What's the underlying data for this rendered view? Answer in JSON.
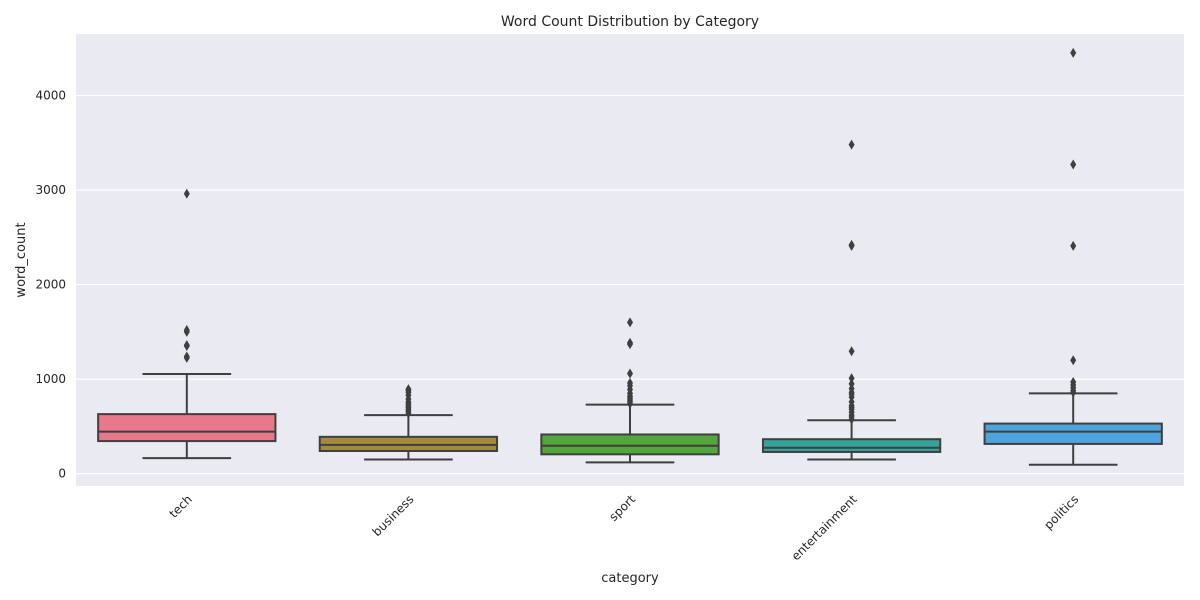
{
  "chart_data": {
    "type": "box",
    "title": "Word Count Distribution by Category",
    "xlabel": "category",
    "ylabel": "word_count",
    "ylim": [
      -130,
      4650
    ],
    "yticks": [
      0,
      1000,
      2000,
      3000,
      4000
    ],
    "grid": true,
    "categories": [
      "tech",
      "business",
      "sport",
      "entertainment",
      "politics"
    ],
    "colors": [
      "#e8798c",
      "#a48a3f",
      "#53a53c",
      "#34a39a",
      "#4ea3dd"
    ],
    "edge_color": "#3f3f3f",
    "background": "#eaeaf2",
    "boxes": [
      {
        "category": "tech",
        "whislo": 165,
        "q1": 345,
        "median": 445,
        "q3": 630,
        "whishi": 1055,
        "fliers": [
          1225,
          1240,
          1350,
          1360,
          1500,
          1520,
          2960
        ]
      },
      {
        "category": "business",
        "whislo": 150,
        "q1": 240,
        "median": 305,
        "q3": 390,
        "whishi": 620,
        "fliers": [
          640,
          660,
          680,
          700,
          720,
          740,
          760,
          790,
          830,
          860,
          880,
          895
        ]
      },
      {
        "category": "sport",
        "whislo": 120,
        "q1": 205,
        "median": 295,
        "q3": 415,
        "whishi": 730,
        "fliers": [
          740,
          760,
          780,
          800,
          820,
          850,
          890,
          930,
          960,
          1060,
          1370,
          1385,
          1600
        ]
      },
      {
        "category": "entertainment",
        "whislo": 150,
        "q1": 230,
        "median": 275,
        "q3": 365,
        "whishi": 565,
        "fliers": [
          575,
          600,
          620,
          650,
          680,
          700,
          720,
          760,
          810,
          840,
          860,
          900,
          950,
          1010,
          1295,
          2410,
          2420,
          3480
        ]
      },
      {
        "category": "politics",
        "whislo": 95,
        "q1": 315,
        "median": 445,
        "q3": 530,
        "whishi": 850,
        "fliers": [
          860,
          880,
          910,
          940,
          970,
          1200,
          2410,
          3270,
          4450
        ]
      }
    ]
  }
}
